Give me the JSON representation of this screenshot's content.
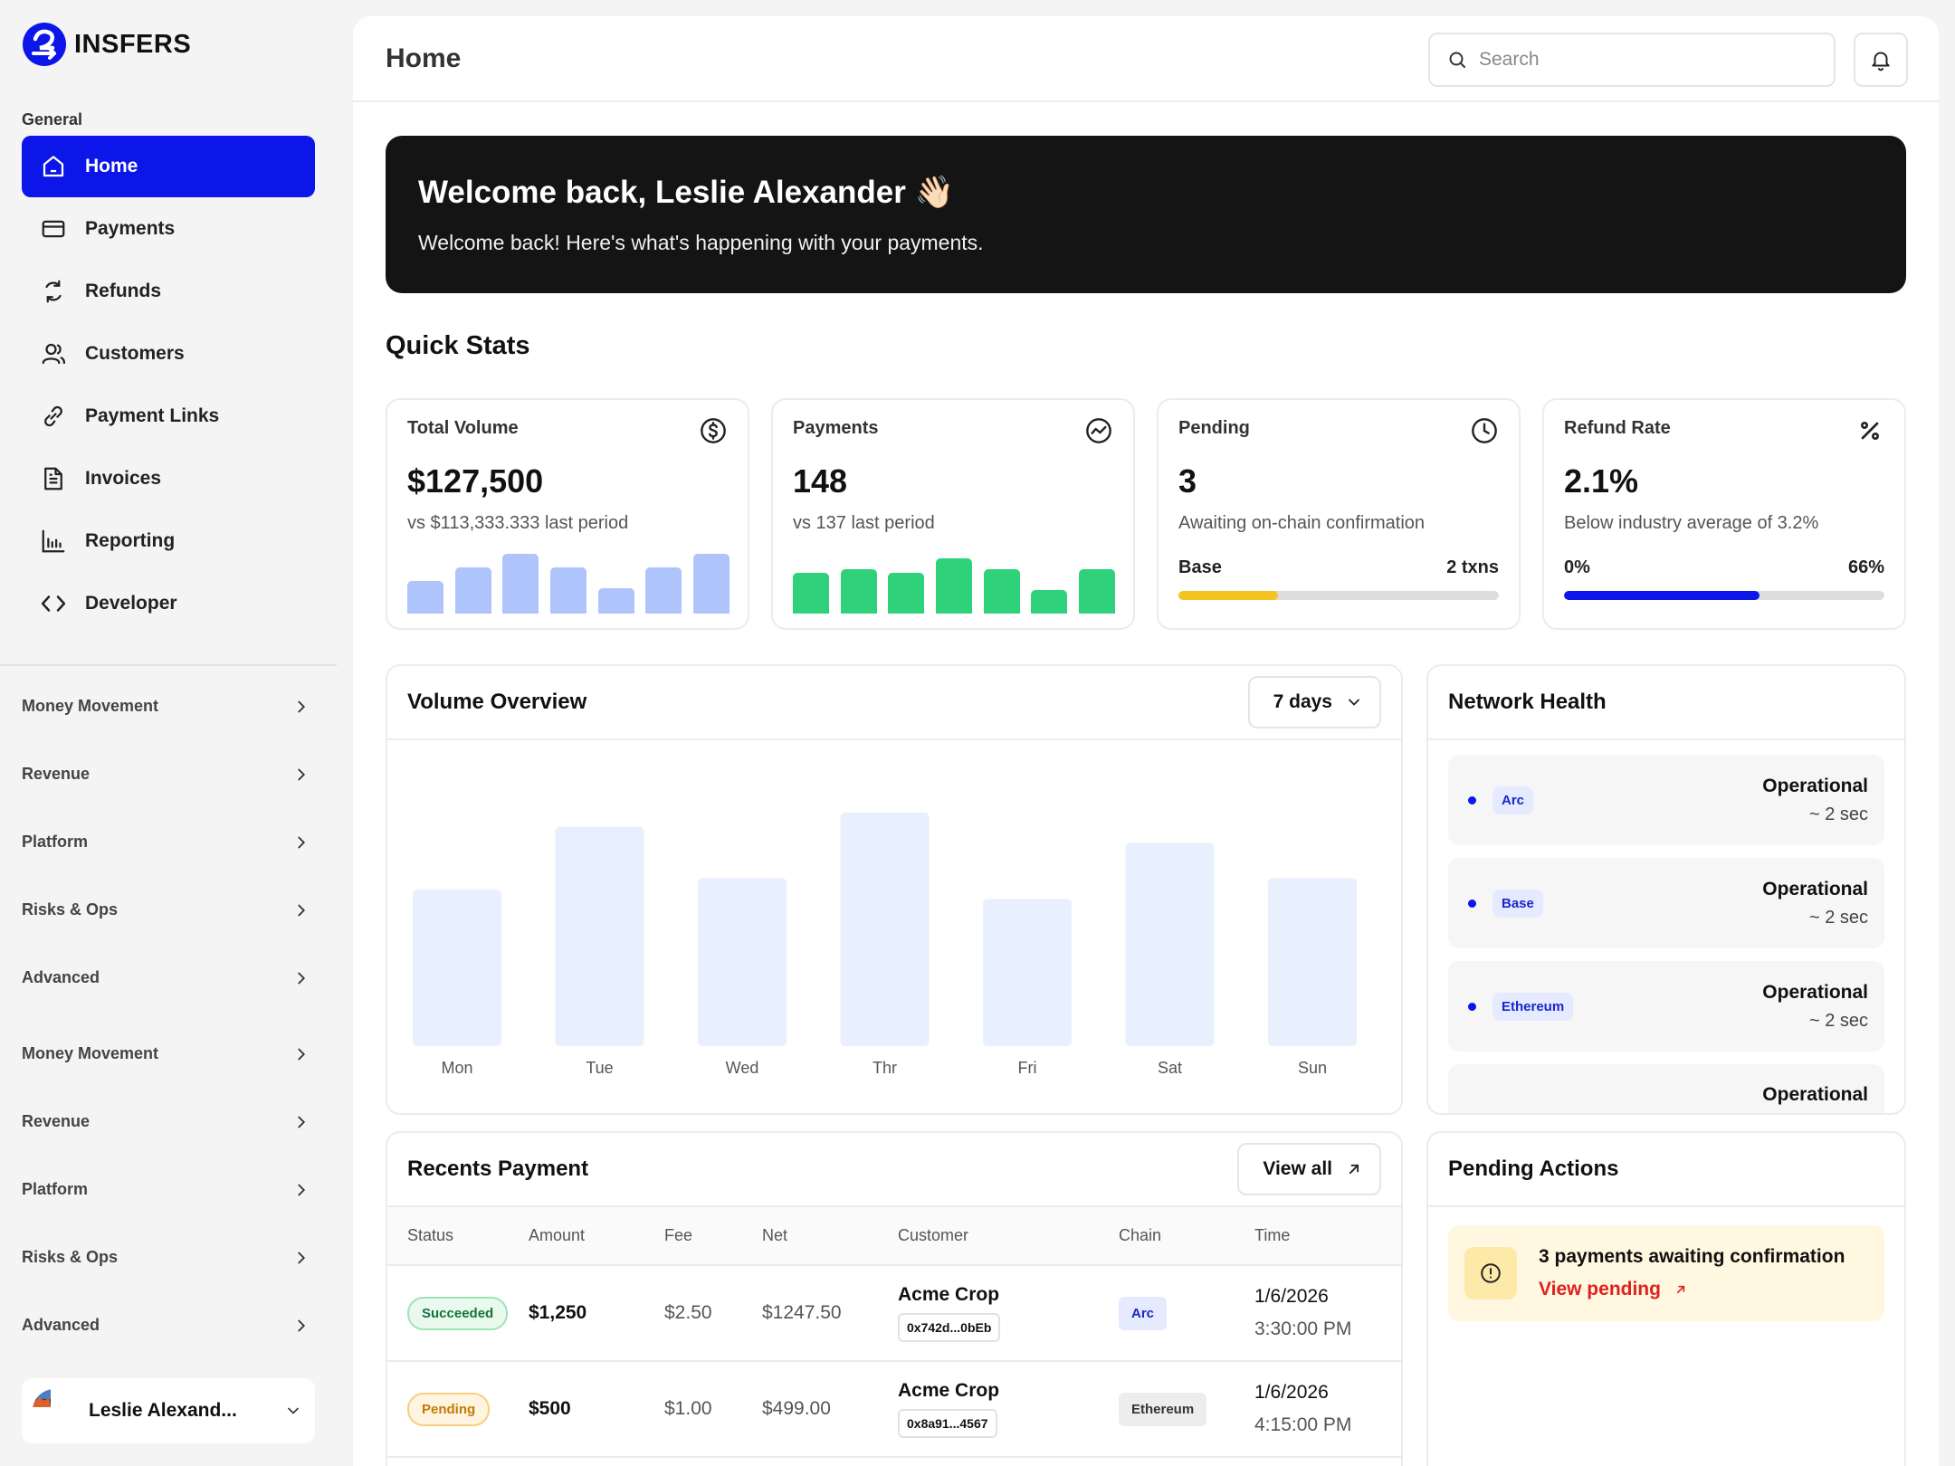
{
  "brand": {
    "name": "INSFERS",
    "accent": "#0c16e8"
  },
  "sidebar": {
    "section_label": "General",
    "items": [
      {
        "label": "Home",
        "icon": "home-icon",
        "active": true
      },
      {
        "label": "Payments",
        "icon": "card-icon"
      },
      {
        "label": "Refunds",
        "icon": "refresh-icon"
      },
      {
        "label": "Customers",
        "icon": "users-icon"
      },
      {
        "label": "Payment Links",
        "icon": "link-icon"
      },
      {
        "label": "Invoices",
        "icon": "document-icon"
      },
      {
        "label": "Reporting",
        "icon": "bar-chart-icon"
      },
      {
        "label": "Developer",
        "icon": "code-icon"
      }
    ],
    "groups": [
      "Money Movement",
      "Revenue",
      "Platform",
      "Risks & Ops",
      "Advanced",
      "Money Movement",
      "Revenue",
      "Platform",
      "Risks & Ops",
      "Advanced"
    ],
    "user": {
      "name": "Leslie Alexand..."
    }
  },
  "header": {
    "title": "Home",
    "search_placeholder": "Search"
  },
  "banner": {
    "title": "Welcome back, Leslie Alexander 👋🏻",
    "subtitle": "Welcome back! Here's what's happening with your payments."
  },
  "quick_stats": {
    "title": "Quick Stats",
    "total_volume": {
      "label": "Total Volume",
      "value": "$127,500",
      "sub": "vs $113,333.333 last period",
      "bars": [
        0.55,
        0.78,
        1.0,
        0.78,
        0.42,
        0.78,
        1.0
      ],
      "color": "#aec4fb"
    },
    "payments": {
      "label": "Payments",
      "value": "148",
      "sub": "vs 137 last period",
      "bars": [
        0.68,
        0.74,
        0.68,
        0.92,
        0.74,
        0.4,
        0.74
      ],
      "color": "#2fd27b"
    },
    "pending": {
      "label": "Pending",
      "value": "3",
      "sub": "Awaiting on-chain confirmation",
      "left": "Base",
      "right": "2 txns",
      "progress": 0.31,
      "color": "#f5c41f"
    },
    "refund_rate": {
      "label": "Refund Rate",
      "value": "2.1%",
      "sub": "Below industry average of 3.2%",
      "left": "0%",
      "right": "66%",
      "progress": 0.61,
      "color": "#0c16e8"
    }
  },
  "volume_overview": {
    "title": "Volume Overview",
    "range": "7 days"
  },
  "chart_data": {
    "type": "bar",
    "categories": [
      "Mon",
      "Tue",
      "Wed",
      "Thr",
      "Fri",
      "Sat",
      "Sun"
    ],
    "values": [
      0.67,
      0.94,
      0.72,
      1.0,
      0.63,
      0.87,
      0.72
    ],
    "color": "#e8effd"
  },
  "network_health": {
    "title": "Network Health",
    "items": [
      {
        "chain": "Arc",
        "status": "Operational",
        "time": "~ 2 sec"
      },
      {
        "chain": "Base",
        "status": "Operational",
        "time": "~ 2 sec"
      },
      {
        "chain": "Ethereum",
        "status": "Operational",
        "time": "~ 2 sec"
      },
      {
        "chain": "",
        "status": "Operational",
        "time": ""
      }
    ]
  },
  "recent_payments": {
    "title": "Recents Payment",
    "view_all": "View all",
    "columns": [
      "Status",
      "Amount",
      "Fee",
      "Net",
      "Customer",
      "Chain",
      "Time"
    ],
    "rows": [
      {
        "status": "Succeeded",
        "amount": "$1,250",
        "fee": "$2.50",
        "net": "$1247.50",
        "customer": "Acme Crop",
        "address": "0x742d...0bEb",
        "chain": "Arc",
        "date": "1/6/2026",
        "time": "3:30:00 PM"
      },
      {
        "status": "Pending",
        "amount": "$500",
        "fee": "$1.00",
        "net": "$499.00",
        "customer": "Acme Crop",
        "address": "0x8a91...4567",
        "chain": "Ethereum",
        "date": "1/6/2026",
        "time": "4:15:00 PM"
      }
    ]
  },
  "pending_actions": {
    "title": "Pending Actions",
    "message": "3 payments awaiting confirmation",
    "link": "View pending"
  }
}
